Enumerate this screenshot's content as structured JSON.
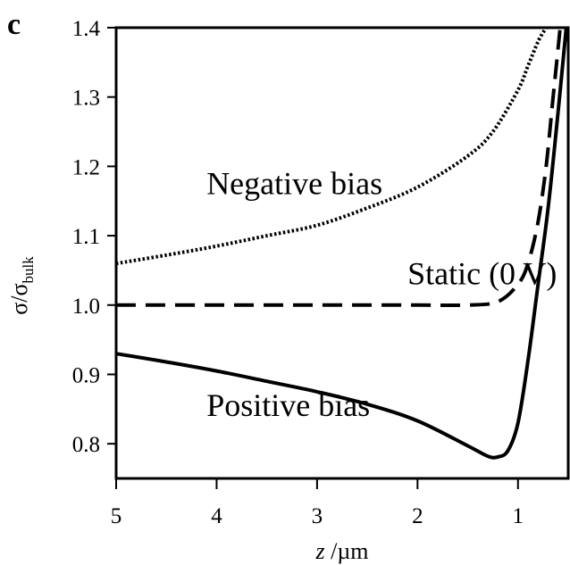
{
  "panel_label": "c",
  "chart_data": {
    "type": "line",
    "title": "",
    "xlabel": {
      "var": "z",
      "unit": " /µm"
    },
    "ylabel": {
      "main": "σ/σ",
      "sub": "bulk"
    },
    "xlim": [
      5,
      0.5
    ],
    "ylim": [
      0.75,
      1.4
    ],
    "x_reversed": true,
    "grid": false,
    "x_ticks": [
      5,
      4,
      3,
      2,
      1
    ],
    "y_ticks": [
      0.8,
      0.9,
      1.0,
      1.1,
      1.2,
      1.3,
      1.4
    ],
    "x_tick_labels": [
      "5",
      "4",
      "3",
      "2",
      "1"
    ],
    "y_tick_labels": [
      "0.8",
      "0.9",
      "1.0",
      "1.1",
      "1.2",
      "1.3",
      "1.4"
    ],
    "series": [
      {
        "name": "Negative bias",
        "style": "dotted",
        "x": [
          5.0,
          4.5,
          4.0,
          3.5,
          3.0,
          2.5,
          2.0,
          1.5,
          1.25,
          1.0,
          0.9,
          0.8,
          0.72
        ],
        "y": [
          1.06,
          1.072,
          1.085,
          1.1,
          1.115,
          1.14,
          1.17,
          1.215,
          1.25,
          1.31,
          1.345,
          1.38,
          1.4
        ]
      },
      {
        "name": "Static (0 V)",
        "style": "dashed",
        "x": [
          5.0,
          4.0,
          3.0,
          2.0,
          1.5,
          1.2,
          1.0,
          0.9,
          0.8,
          0.72,
          0.65,
          0.58
        ],
        "y": [
          1.0,
          1.0,
          1.0,
          1.0,
          1.0,
          1.005,
          1.03,
          1.06,
          1.12,
          1.2,
          1.3,
          1.4
        ]
      },
      {
        "name": "Positive bias",
        "style": "solid",
        "x": [
          5.0,
          4.5,
          4.0,
          3.5,
          3.0,
          2.5,
          2.0,
          1.5,
          1.3,
          1.2,
          1.1,
          1.0,
          0.9,
          0.8,
          0.7,
          0.6,
          0.52
        ],
        "y": [
          0.93,
          0.918,
          0.905,
          0.89,
          0.875,
          0.857,
          0.833,
          0.797,
          0.782,
          0.781,
          0.79,
          0.83,
          0.92,
          1.03,
          1.14,
          1.28,
          1.4
        ]
      }
    ],
    "annotations": [
      {
        "text": "Negative bias",
        "x": 4.1,
        "y": 1.16
      },
      {
        "text": "Static (0 V)",
        "x": 2.1,
        "y": 1.03
      },
      {
        "text": "Positive bias",
        "x": 4.1,
        "y": 0.84
      }
    ]
  }
}
